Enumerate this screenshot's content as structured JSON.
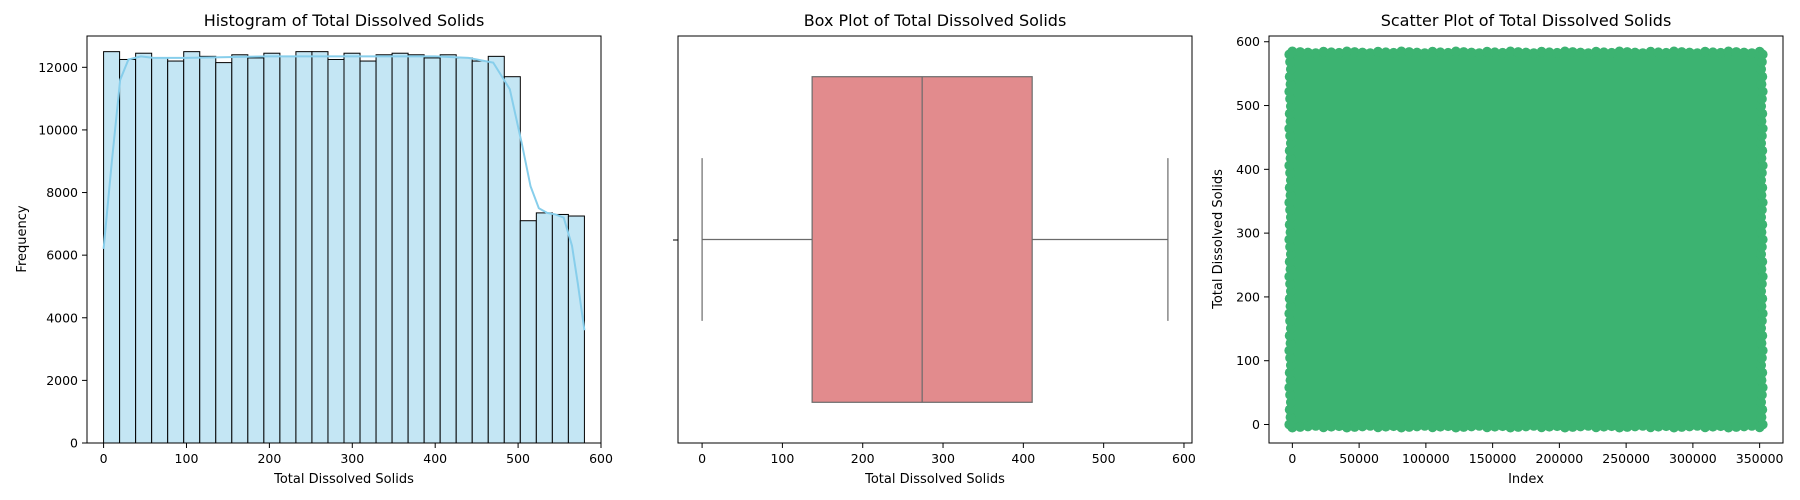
{
  "chart_data": [
    {
      "type": "bar",
      "title": "Histogram of Total Dissolved Solids",
      "xlabel": "Total Dissolved Solids",
      "ylabel": "Frequency",
      "xlim": [
        -20,
        600
      ],
      "ylim": [
        0,
        13000
      ],
      "xticks": [
        0,
        100,
        200,
        300,
        400,
        500,
        600
      ],
      "yticks": [
        0,
        2000,
        4000,
        6000,
        8000,
        10000,
        12000
      ],
      "bin_edges": [
        0,
        19.33,
        38.67,
        58,
        77.33,
        96.67,
        116,
        135.33,
        154.67,
        174,
        193.33,
        212.67,
        232,
        251.33,
        270.67,
        290,
        309.33,
        328.67,
        348,
        367.33,
        386.67,
        406,
        425.33,
        444.67,
        464,
        483.33,
        502.67,
        522,
        541.33,
        560.67,
        580
      ],
      "values": [
        12500,
        12250,
        12450,
        12300,
        12200,
        12500,
        12350,
        12150,
        12400,
        12300,
        12450,
        12350,
        12500,
        12500,
        12250,
        12450,
        12200,
        12400,
        12450,
        12400,
        12300,
        12400,
        12300,
        12200,
        12350,
        11700,
        7100,
        7350,
        7300,
        7250
      ],
      "kde": {
        "x": [
          0,
          10,
          20,
          30,
          45,
          60,
          100,
          200,
          300,
          400,
          440,
          470,
          490,
          505,
          515,
          525,
          535,
          545,
          555,
          565,
          572,
          580
        ],
        "y": [
          6200,
          9000,
          11600,
          12250,
          12350,
          12300,
          12300,
          12350,
          12350,
          12350,
          12300,
          12150,
          11300,
          9500,
          8200,
          7500,
          7350,
          7300,
          7200,
          6300,
          5100,
          3600
        ]
      },
      "colors": {
        "bar": "#c4e6f4",
        "edge": "#000000",
        "kde": "#87ceeb"
      }
    },
    {
      "type": "box",
      "title": "Box Plot of Total Dissolved Solids",
      "xlabel": "Total Dissolved Solids",
      "ylabel": "",
      "xlim": [
        -30,
        610
      ],
      "xticks": [
        0,
        100,
        200,
        300,
        400,
        500,
        600
      ],
      "min": 0,
      "q1": 137,
      "median": 274,
      "q3": 411,
      "max": 580,
      "colors": {
        "box": "#e28b8d",
        "line": "#6b6b6b"
      }
    },
    {
      "type": "scatter",
      "title": "Scatter Plot of Total Dissolved Solids",
      "xlabel": "Index",
      "ylabel": "Total Dissolved Solids",
      "xlim": [
        -17500,
        367500
      ],
      "ylim": [
        -29,
        609
      ],
      "xticks": [
        0,
        50000,
        100000,
        150000,
        200000,
        250000,
        300000,
        350000
      ],
      "yticks": [
        0,
        100,
        200,
        300,
        400,
        500,
        600
      ],
      "x_range": [
        0,
        350000
      ],
      "y_range": [
        0,
        580
      ],
      "colors": {
        "points": "#3cb371"
      }
    }
  ]
}
